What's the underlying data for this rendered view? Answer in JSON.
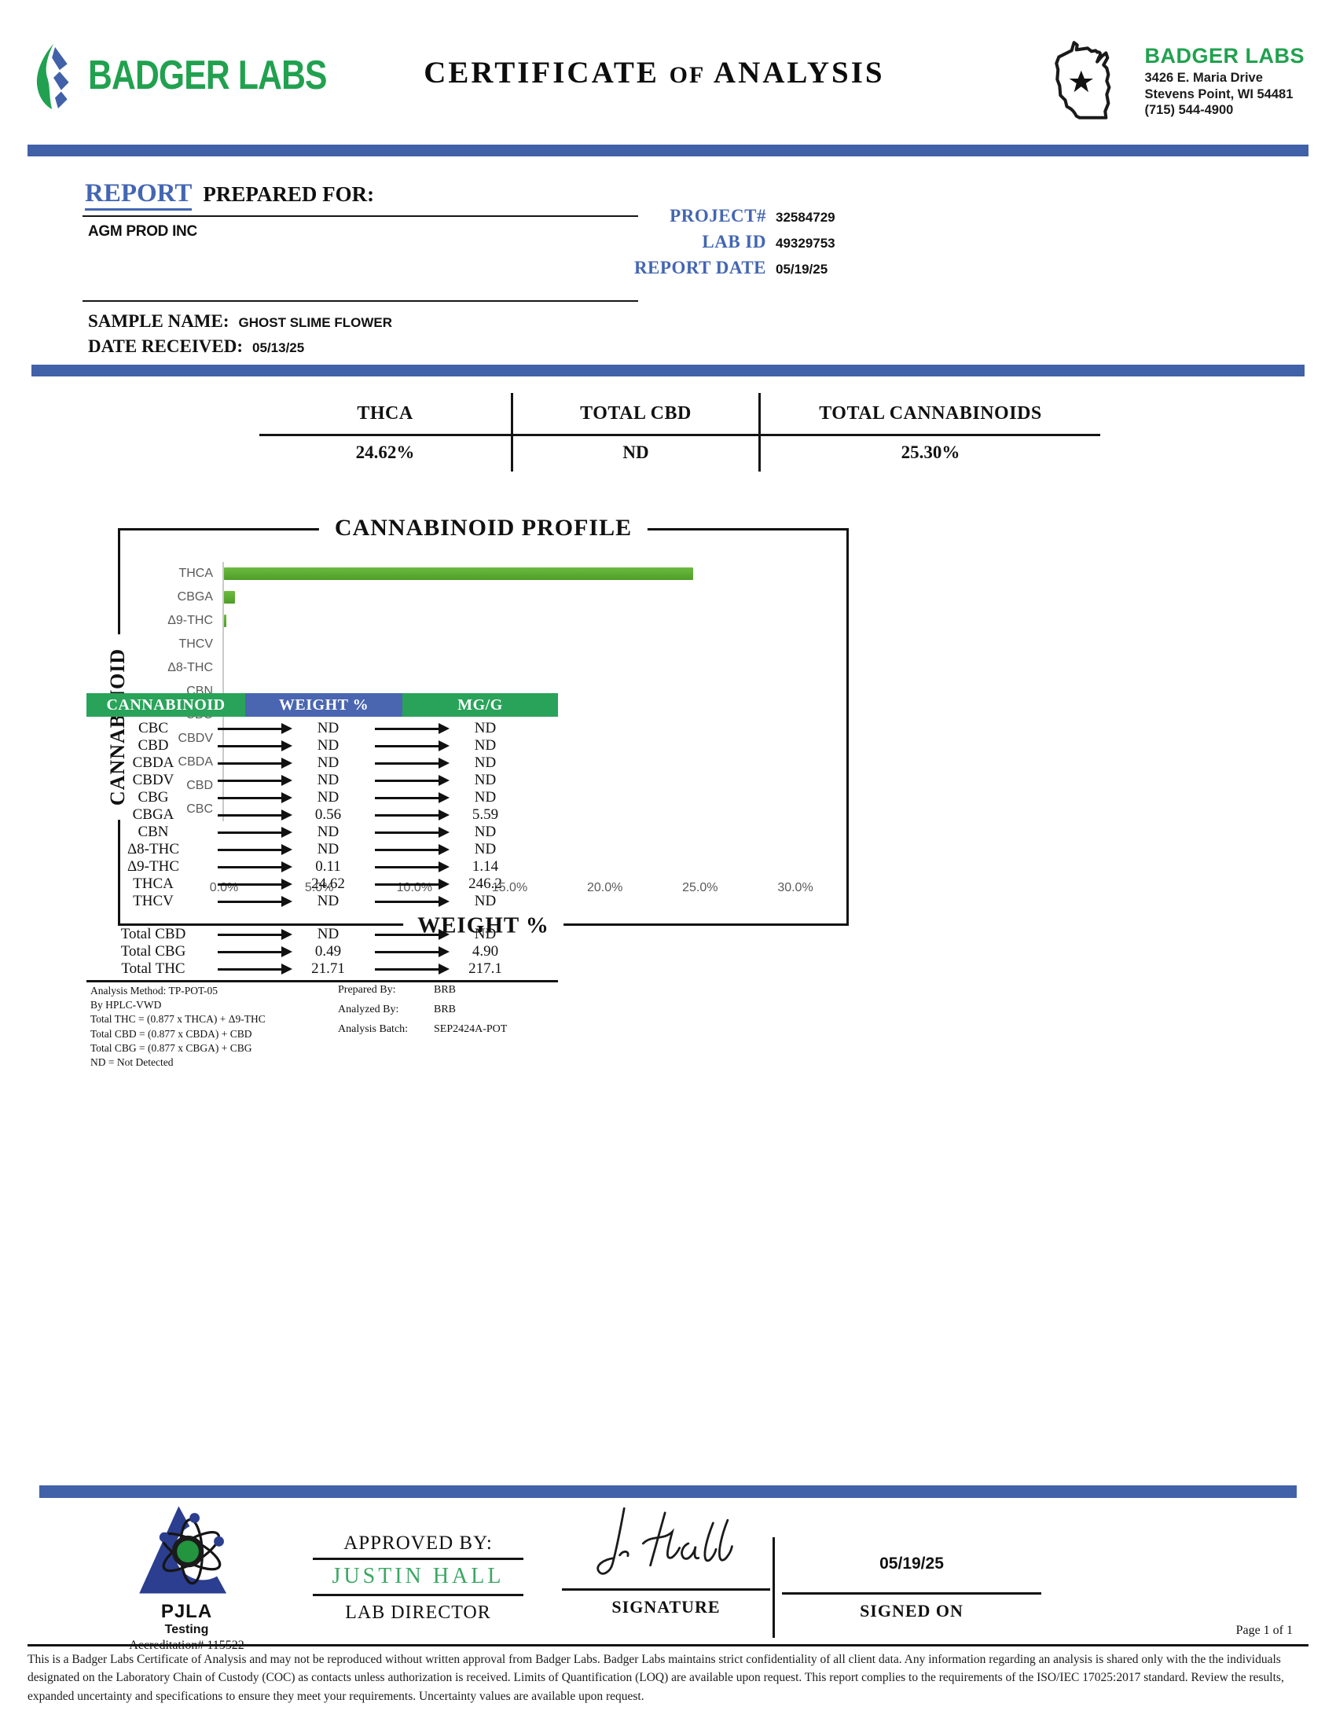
{
  "header": {
    "logo_text": "BADGER LABS",
    "title_part1": "CERTIFICATE",
    "title_of": "OF",
    "title_part2": "ANALYSIS",
    "lab_info": {
      "name": "BADGER LABS",
      "address_line1": "3426 E. Maria Drive",
      "address_line2": "Stevens Point, WI 54481",
      "phone": "(715) 544-4900"
    }
  },
  "icons": {
    "leaf_logo": "badger-labs-leaf-logo",
    "wisconsin_map": "wisconsin-state-outline-with-star",
    "pjla_logo": "pjla-atom-triangle-logo",
    "signature": "handwritten-signature-justin-hall",
    "arrow": "right-arrow"
  },
  "colors": {
    "accent_blue": "#4161a8",
    "label_blue": "#4466b2",
    "brand_green": "#21a14f",
    "bar_green": "#5aae2e",
    "table_header_green": "#2aa35a",
    "table_header_blue": "#4a66b0",
    "approver_green": "#3ba763"
  },
  "report_info": {
    "heading_accent": "REPORT",
    "heading_rest": "PREPARED FOR:",
    "client": "AGM PROD INC",
    "fields": [
      {
        "label": "PROJECT#",
        "value": "32584729"
      },
      {
        "label": "LAB ID",
        "value": "49329753"
      },
      {
        "label": "REPORT DATE",
        "value": "05/19/25"
      }
    ],
    "sample_name_label": "SAMPLE NAME:",
    "sample_name": "GHOST SLIME FLOWER",
    "date_received_label": "DATE RECEIVED:",
    "date_received": "05/13/25"
  },
  "summary": {
    "columns": [
      {
        "label": "THCA",
        "value": "24.62%"
      },
      {
        "label": "TOTAL CBD",
        "value": "ND"
      },
      {
        "label": "TOTAL CANNABINOIDS",
        "value": "25.30%"
      }
    ]
  },
  "chart_data": {
    "type": "bar",
    "orientation": "horizontal",
    "title": "CANNABINOID PROFILE",
    "xlabel": "WEIGHT %",
    "ylabel": "CANNABINOID",
    "categories": [
      "THCA",
      "CBGA",
      "Δ9-THC",
      "THCV",
      "Δ8-THC",
      "CBN",
      "CBG",
      "CBDV",
      "CBDA",
      "CBD",
      "CBC"
    ],
    "values": [
      24.62,
      0.56,
      0.11,
      0,
      0,
      0,
      0,
      0,
      0,
      0,
      0
    ],
    "xlim": [
      0,
      30
    ],
    "x_ticks": [
      "0.0%",
      "5.0%",
      "10.0%",
      "15.0%",
      "20.0%",
      "25.0%",
      "30.0%"
    ],
    "bar_color_top": "#6cbb40",
    "bar_color_bottom": "#4f9d28",
    "grid": false,
    "legend": "none"
  },
  "results_table": {
    "headers": [
      {
        "label": "CANNABINOID",
        "color": "#2aa35a"
      },
      {
        "label": "WEIGHT %",
        "color": "#4a66b0"
      },
      {
        "label": "MG/G",
        "color": "#2aa35a"
      }
    ],
    "rows": [
      {
        "name": "CBC",
        "weight": "ND",
        "mgg": "ND"
      },
      {
        "name": "CBD",
        "weight": "ND",
        "mgg": "ND"
      },
      {
        "name": "CBDA",
        "weight": "ND",
        "mgg": "ND"
      },
      {
        "name": "CBDV",
        "weight": "ND",
        "mgg": "ND"
      },
      {
        "name": "CBG",
        "weight": "ND",
        "mgg": "ND"
      },
      {
        "name": "CBGA",
        "weight": "0.56",
        "mgg": "5.59"
      },
      {
        "name": "CBN",
        "weight": "ND",
        "mgg": "ND"
      },
      {
        "name": "Δ8-THC",
        "weight": "ND",
        "mgg": "ND"
      },
      {
        "name": "Δ9-THC",
        "weight": "0.11",
        "mgg": "1.14"
      },
      {
        "name": "THCA",
        "weight": "24.62",
        "mgg": "246.2"
      },
      {
        "name": "THCV",
        "weight": "ND",
        "mgg": "ND"
      }
    ],
    "total_rows": [
      {
        "name": "Total CBD",
        "weight": "ND",
        "mgg": "ND"
      },
      {
        "name": "Total CBG",
        "weight": "0.49",
        "mgg": "4.90"
      },
      {
        "name": "Total THC",
        "weight": "21.71",
        "mgg": "217.1"
      }
    ]
  },
  "notes": {
    "left": [
      "Analysis Method: TP-POT-05",
      "By HPLC-VWD",
      "Total THC = (0.877 x  THCA) + Δ9-THC",
      "Total CBD = (0.877 x  CBDA) + CBD",
      "Total CBG = (0.877 x  CBGA) + CBG",
      "ND = Not Detected"
    ],
    "right": [
      {
        "label": "Prepared By:",
        "value": "BRB"
      },
      {
        "label": "Analyzed By:",
        "value": "BRB"
      },
      {
        "label": "Analysis Batch:",
        "value": "SEP2424A-POT"
      }
    ]
  },
  "approval": {
    "approved_by_label": "APPROVED BY:",
    "name": "JUSTIN HALL",
    "role": "LAB DIRECTOR",
    "signature_label": "SIGNATURE",
    "signed_on_label": "SIGNED ON",
    "signed_date": "05/19/25"
  },
  "accreditation": {
    "org": "PJLA",
    "program": "Testing",
    "number": "Accreditation# 115522"
  },
  "footer": {
    "page": "Page 1 of 1",
    "disclaimer": "This is a Badger Labs Certificate of Analysis and may not be reproduced without written approval from Badger Labs. Badger Labs maintains strict confidentiality of all client data. Any information regarding an analysis is shared only with the the individuals designated on the Laboratory Chain of Custody (COC) as contacts unless authorization is received. Limits of Quantification (LOQ) are available upon request. This report complies to the requirements of the ISO/IEC 17025:2017 standard. Review the results, expanded uncertainty and specifications to ensure they meet your requirements. Uncertainty values are available upon request."
  }
}
